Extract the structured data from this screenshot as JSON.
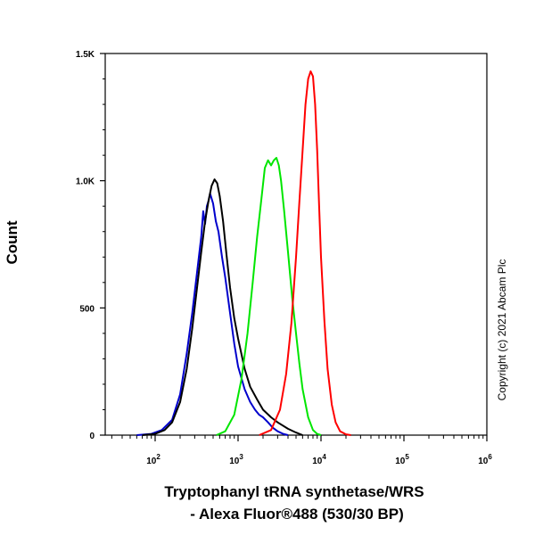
{
  "chart_data": {
    "type": "line",
    "title": "",
    "xlabel_line1": "Tryptophanyl tRNA synthetase/WRS",
    "xlabel_line2": "- Alexa Fluor®488 (530/30 BP)",
    "ylabel": "Count",
    "x_scale": "log",
    "xlim": [
      25,
      1000000
    ],
    "ylim": [
      0,
      1500
    ],
    "y_ticks": [
      {
        "value": 0,
        "label": "0"
      },
      {
        "value": 500,
        "label": "500"
      },
      {
        "value": 1000,
        "label": "1.0K"
      },
      {
        "value": 1500,
        "label": "1.5K"
      }
    ],
    "x_ticks": [
      {
        "value": 100,
        "base": "10",
        "exp": "2"
      },
      {
        "value": 1000,
        "base": "10",
        "exp": "3"
      },
      {
        "value": 10000,
        "base": "10",
        "exp": "4"
      },
      {
        "value": 100000,
        "base": "10",
        "exp": "5"
      },
      {
        "value": 1000000,
        "base": "10",
        "exp": "6"
      }
    ],
    "grid": false,
    "copyright": "Copyright (c) 2021 Abcam Plc",
    "series": [
      {
        "color": "#0000cc",
        "x": [
          60,
          90,
          120,
          160,
          200,
          240,
          280,
          320,
          360,
          380,
          400,
          420,
          440,
          460,
          500,
          540,
          580,
          640,
          700,
          800,
          900,
          1000,
          1200,
          1400,
          1600,
          1800,
          2000,
          2300,
          2600,
          3000,
          3500,
          4000
        ],
        "y": [
          0,
          5,
          20,
          60,
          160,
          320,
          480,
          640,
          780,
          880,
          830,
          900,
          920,
          950,
          910,
          840,
          800,
          700,
          620,
          480,
          360,
          270,
          180,
          130,
          100,
          80,
          70,
          50,
          30,
          15,
          5,
          0
        ]
      },
      {
        "color": "#000000",
        "x": [
          70,
          100,
          130,
          160,
          200,
          240,
          280,
          320,
          360,
          400,
          440,
          480,
          520,
          560,
          600,
          660,
          720,
          800,
          900,
          1000,
          1200,
          1400,
          1700,
          2000,
          2500,
          3000,
          4000,
          5000,
          6000
        ],
        "y": [
          0,
          5,
          20,
          50,
          130,
          260,
          420,
          580,
          720,
          840,
          920,
          980,
          1005,
          990,
          940,
          840,
          720,
          580,
          460,
          380,
          260,
          190,
          140,
          100,
          70,
          50,
          25,
          10,
          0
        ]
      },
      {
        "color": "#00e600",
        "x": [
          550,
          700,
          900,
          1100,
          1300,
          1500,
          1700,
          1900,
          2100,
          2300,
          2500,
          2700,
          2900,
          3100,
          3300,
          3600,
          4000,
          4500,
          5000,
          5500,
          6000,
          7000,
          8000,
          9000,
          10000
        ],
        "y": [
          0,
          15,
          80,
          220,
          400,
          600,
          780,
          920,
          1050,
          1080,
          1060,
          1080,
          1090,
          1060,
          1000,
          880,
          720,
          540,
          400,
          280,
          180,
          70,
          20,
          5,
          0
        ]
      },
      {
        "color": "#ff0000",
        "x": [
          1800,
          2500,
          3200,
          3800,
          4400,
          5000,
          5500,
          6000,
          6500,
          7000,
          7500,
          8000,
          8500,
          9000,
          9500,
          10000,
          11000,
          12000,
          13500,
          15000,
          17000,
          20000,
          23000
        ],
        "y": [
          0,
          20,
          100,
          240,
          440,
          700,
          920,
          1120,
          1300,
          1400,
          1430,
          1410,
          1300,
          1120,
          900,
          700,
          450,
          260,
          120,
          50,
          15,
          3,
          0
        ]
      }
    ]
  }
}
